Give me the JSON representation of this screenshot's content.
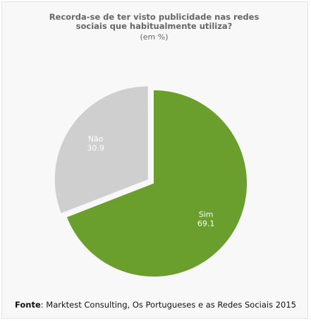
{
  "chart_data": {
    "type": "pie",
    "title_line1": "Recorda-se de ter visto publicidade nas redes",
    "title_line2": "sociais que habitualmente utiliza?",
    "subtitle": "(em %)",
    "slices": [
      {
        "label": "Sim",
        "value": 69.1,
        "value_text": "69.1",
        "color": "#6a9f2e"
      },
      {
        "label": "Não",
        "value": 30.9,
        "value_text": "30.9",
        "color": "#cfcfcf",
        "exploded": true
      }
    ],
    "legend": "none"
  },
  "source": {
    "label": "Fonte",
    "text": ": Marktest Consulting, Os Portugueses e as Redes Sociais 2015"
  }
}
